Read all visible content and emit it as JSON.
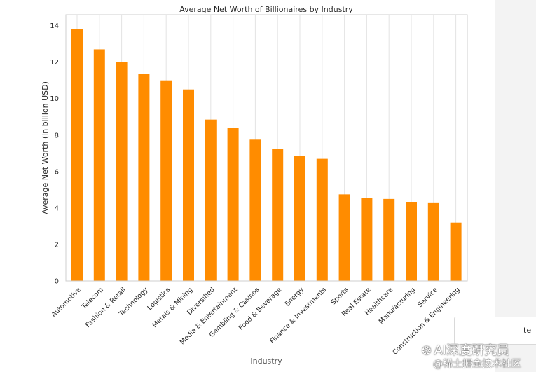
{
  "chart_data": {
    "type": "bar",
    "title": "Average Net Worth of Billionaires by Industry",
    "xlabel": "Industry",
    "ylabel": "Average Net Worth (in billion USD)",
    "categories": [
      "Automotive",
      "Telecom",
      "Fashion & Retail",
      "Technology",
      "Logistics",
      "Metals & Mining",
      "Diversified",
      "Media & Entertainment",
      "Gambling & Casinos",
      "Food & Beverage",
      "Energy",
      "Finance & Investments",
      "Sports",
      "Real Estate",
      "Healthcare",
      "Manufacturing",
      "Service",
      "Construction & Engineering"
    ],
    "values": [
      13.8,
      12.7,
      12.0,
      11.35,
      11.0,
      10.5,
      8.85,
      8.4,
      7.75,
      7.25,
      6.85,
      6.7,
      4.75,
      4.55,
      4.5,
      4.32,
      4.27,
      3.2
    ],
    "ylim": [
      0,
      14.6
    ],
    "yticks": [
      0,
      2,
      4,
      6,
      8,
      10,
      12,
      14
    ],
    "grid": "vertical",
    "bar_color": "#ff8c00"
  },
  "legend_fragment": "te",
  "watermark": {
    "line1": "AI深度研究员",
    "line2": "@稀土掘金技术社区"
  }
}
